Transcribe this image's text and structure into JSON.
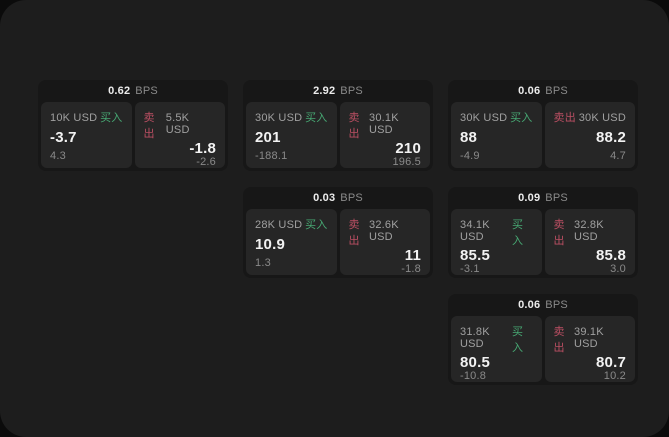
{
  "labels": {
    "bps_unit": "BPS",
    "buy": "买入",
    "sell": "卖出"
  },
  "colors": {
    "backdrop": "#0b0b0b",
    "panel_background": "#1d1d1d",
    "card_background": "#171717",
    "tile_background": "#262626",
    "buy_green": "#47a873",
    "sell_red": "#bb4f63",
    "value_white": "#f2f2f2",
    "label_gray": "#a0a0a0",
    "dim_gray": "#8a8a8a"
  },
  "cards": [
    {
      "bps": "0.62",
      "buy": {
        "amount": "10K USD",
        "price": "-3.7",
        "change": "4.3"
      },
      "sell": {
        "amount": "5.5K USD",
        "price": "-1.8",
        "change": "-2.6"
      }
    },
    {
      "bps": "2.92",
      "buy": {
        "amount": "30K USD",
        "price": "201",
        "change": "-188.1"
      },
      "sell": {
        "amount": "30.1K USD",
        "price": "210",
        "change": "196.5"
      }
    },
    {
      "bps": "0.06",
      "buy": {
        "amount": "30K USD",
        "price": "88",
        "change": "-4.9"
      },
      "sell": {
        "amount": "30K USD",
        "price": "88.2",
        "change": "4.7"
      }
    },
    {
      "bps": "0.03",
      "buy": {
        "amount": "28K USD",
        "price": "10.9",
        "change": "1.3"
      },
      "sell": {
        "amount": "32.6K USD",
        "price": "11",
        "change": "-1.8"
      }
    },
    {
      "bps": "0.09",
      "buy": {
        "amount": "34.1K USD",
        "price": "85.5",
        "change": "-3.1"
      },
      "sell": {
        "amount": "32.8K USD",
        "price": "85.8",
        "change": "3.0"
      }
    },
    {
      "bps": "0.06",
      "buy": {
        "amount": "31.8K USD",
        "price": "80.5",
        "change": "-10.8"
      },
      "sell": {
        "amount": "39.1K USD",
        "price": "80.7",
        "change": "10.2"
      }
    }
  ]
}
